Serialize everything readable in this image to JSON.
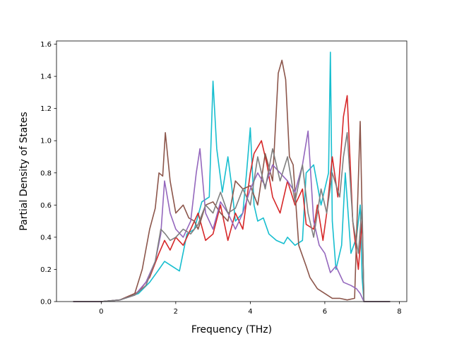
{
  "chart_data": {
    "type": "line",
    "title": "",
    "xlabel": "Frequency (THz)",
    "ylabel": "Partial Density of States",
    "xlim": [
      -1.2,
      8.2
    ],
    "ylim": [
      0.0,
      1.62
    ],
    "xticks": [
      0,
      2,
      4,
      6,
      8
    ],
    "yticks": [
      0.0,
      0.2,
      0.4,
      0.6,
      0.8,
      1.0,
      1.2,
      1.4,
      1.6
    ],
    "xtick_labels": [
      "0",
      "2",
      "4",
      "6",
      "8"
    ],
    "ytick_labels": [
      "0.0",
      "0.2",
      "0.4",
      "0.6",
      "0.8",
      "1.0",
      "1.2",
      "1.4",
      "1.6"
    ],
    "grid": false,
    "legend": "none",
    "series": [
      {
        "color": "#17becf",
        "x": [
          -0.75,
          0,
          0.5,
          1.0,
          1.3,
          1.55,
          1.7,
          1.9,
          2.1,
          2.3,
          2.5,
          2.7,
          2.9,
          3.0,
          3.1,
          3.25,
          3.4,
          3.5,
          3.6,
          3.8,
          3.9,
          4.0,
          4.1,
          4.2,
          4.35,
          4.5,
          4.7,
          4.9,
          5.0,
          5.2,
          5.4,
          5.5,
          5.7,
          5.9,
          6.1,
          6.15,
          6.2,
          6.3,
          6.45,
          6.55,
          6.7,
          6.85,
          6.95,
          7.0,
          7.05,
          7.2,
          7.75
        ],
        "y": [
          0,
          0,
          0.01,
          0.05,
          0.12,
          0.2,
          0.25,
          0.22,
          0.19,
          0.42,
          0.45,
          0.62,
          0.65,
          1.37,
          0.95,
          0.68,
          0.9,
          0.72,
          0.5,
          0.55,
          0.8,
          1.08,
          0.6,
          0.5,
          0.52,
          0.42,
          0.38,
          0.36,
          0.4,
          0.35,
          0.38,
          0.8,
          0.85,
          0.6,
          0.8,
          1.55,
          0.5,
          0.2,
          0.35,
          0.8,
          0.3,
          0.4,
          0.6,
          0.15,
          0,
          0,
          0
        ]
      },
      {
        "color": "#d62728",
        "x": [
          -0.75,
          0,
          0.5,
          1.0,
          1.3,
          1.55,
          1.7,
          1.85,
          2.0,
          2.2,
          2.4,
          2.6,
          2.8,
          3.0,
          3.2,
          3.4,
          3.6,
          3.8,
          4.0,
          4.1,
          4.3,
          4.45,
          4.6,
          4.8,
          5.0,
          5.2,
          5.4,
          5.5,
          5.7,
          5.8,
          5.95,
          6.05,
          6.2,
          6.35,
          6.5,
          6.6,
          6.75,
          6.9,
          7.0,
          7.05,
          7.75
        ],
        "y": [
          0,
          0,
          0.01,
          0.06,
          0.15,
          0.3,
          0.38,
          0.32,
          0.4,
          0.35,
          0.45,
          0.55,
          0.38,
          0.42,
          0.6,
          0.38,
          0.55,
          0.45,
          0.8,
          0.92,
          1.0,
          0.85,
          0.65,
          0.55,
          0.75,
          0.6,
          0.7,
          0.48,
          0.45,
          0.6,
          0.38,
          0.55,
          0.9,
          0.65,
          1.15,
          1.28,
          0.5,
          0.2,
          0.5,
          0,
          0
        ]
      },
      {
        "color": "#8c564b",
        "x": [
          -0.75,
          0,
          0.5,
          0.9,
          1.1,
          1.3,
          1.45,
          1.55,
          1.65,
          1.72,
          1.85,
          2.0,
          2.2,
          2.35,
          2.5,
          2.6,
          2.8,
          3.0,
          3.2,
          3.4,
          3.6,
          3.8,
          4.0,
          4.2,
          4.4,
          4.6,
          4.75,
          4.85,
          4.95,
          5.05,
          5.15,
          5.3,
          5.5,
          5.6,
          5.8,
          6.0,
          6.2,
          6.4,
          6.6,
          6.8,
          6.95,
          7.05,
          7.75
        ],
        "y": [
          0,
          0,
          0.01,
          0.05,
          0.2,
          0.45,
          0.58,
          0.8,
          0.78,
          1.05,
          0.75,
          0.55,
          0.6,
          0.52,
          0.5,
          0.45,
          0.6,
          0.62,
          0.55,
          0.5,
          0.75,
          0.7,
          0.72,
          0.6,
          0.92,
          0.75,
          1.42,
          1.5,
          1.38,
          0.9,
          0.85,
          0.35,
          0.22,
          0.15,
          0.08,
          0.05,
          0.02,
          0.02,
          0.01,
          0.02,
          1.12,
          0,
          0
        ]
      },
      {
        "color": "#9467bd",
        "x": [
          -0.75,
          0,
          0.5,
          0.9,
          1.2,
          1.45,
          1.6,
          1.7,
          1.85,
          2.0,
          2.2,
          2.4,
          2.55,
          2.65,
          2.8,
          3.0,
          3.2,
          3.4,
          3.6,
          3.8,
          4.0,
          4.2,
          4.4,
          4.6,
          4.8,
          5.0,
          5.2,
          5.4,
          5.55,
          5.7,
          5.85,
          6.0,
          6.15,
          6.3,
          6.5,
          6.7,
          6.85,
          6.95,
          7.05,
          7.75
        ],
        "y": [
          0,
          0,
          0.01,
          0.04,
          0.12,
          0.25,
          0.42,
          0.75,
          0.55,
          0.45,
          0.4,
          0.5,
          0.8,
          0.95,
          0.55,
          0.45,
          0.62,
          0.55,
          0.45,
          0.55,
          0.7,
          0.8,
          0.72,
          0.85,
          0.8,
          0.75,
          0.68,
          0.85,
          1.06,
          0.5,
          0.35,
          0.3,
          0.18,
          0.22,
          0.12,
          0.1,
          0.08,
          0.05,
          0,
          0
        ]
      },
      {
        "color": "#7f7f7f",
        "x": [
          -0.75,
          0,
          0.5,
          0.9,
          1.2,
          1.45,
          1.6,
          1.72,
          1.85,
          2.0,
          2.2,
          2.4,
          2.6,
          2.8,
          3.0,
          3.2,
          3.4,
          3.6,
          3.8,
          4.0,
          4.2,
          4.4,
          4.6,
          4.8,
          5.0,
          5.2,
          5.4,
          5.55,
          5.7,
          5.9,
          6.05,
          6.2,
          6.4,
          6.5,
          6.6,
          6.75,
          6.9,
          7.0,
          7.05,
          7.75
        ],
        "y": [
          0,
          0,
          0.01,
          0.04,
          0.1,
          0.25,
          0.45,
          0.42,
          0.38,
          0.4,
          0.45,
          0.42,
          0.48,
          0.6,
          0.55,
          0.68,
          0.55,
          0.58,
          0.7,
          0.6,
          0.9,
          0.7,
          0.95,
          0.75,
          0.9,
          0.62,
          0.85,
          0.55,
          0.4,
          0.7,
          0.55,
          0.8,
          0.65,
          0.9,
          1.05,
          0.5,
          0.3,
          0.6,
          0,
          0
        ]
      }
    ]
  }
}
